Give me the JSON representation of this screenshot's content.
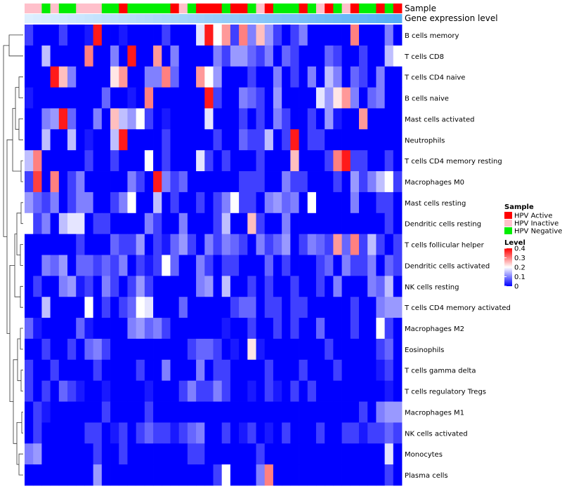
{
  "chart_data": {
    "type": "heatmap",
    "title": "",
    "annotation_rows": [
      "Sample",
      "Gene expression level"
    ],
    "samples": {
      "sample_group": [
        "HPV Inactive",
        "HPV Inactive",
        "HPV Negative",
        "HPV Inactive",
        "HPV Negative",
        "HPV Negative",
        "HPV Inactive",
        "HPV Inactive",
        "HPV Inactive",
        "HPV Negative",
        "HPV Negative",
        "HPV Active",
        "HPV Negative",
        "HPV Negative",
        "HPV Negative",
        "HPV Negative",
        "HPV Negative",
        "HPV Active",
        "HPV Inactive",
        "HPV Negative",
        "HPV Active",
        "HPV Active",
        "HPV Active",
        "HPV Negative",
        "HPV Active",
        "HPV Active",
        "HPV Negative",
        "HPV Inactive",
        "HPV Active",
        "HPV Negative",
        "HPV Negative",
        "HPV Negative",
        "HPV Active",
        "HPV Negative",
        "HPV Inactive",
        "HPV Active",
        "HPV Negative",
        "HPV Inactive",
        "HPV Active",
        "HPV Negative",
        "HPV Negative",
        "HPV Active",
        "HPV Negative",
        "HPV Active"
      ],
      "expression_level": [
        0.02,
        0.04,
        0.06,
        0.08,
        0.1,
        0.12,
        0.14,
        0.16,
        0.18,
        0.2,
        0.22,
        0.24,
        0.26,
        0.28,
        0.3,
        0.32,
        0.34,
        0.36,
        0.38,
        0.4,
        0.42,
        0.44,
        0.46,
        0.48,
        0.5,
        0.52,
        0.54,
        0.56,
        0.58,
        0.6,
        0.62,
        0.64,
        0.66,
        0.68,
        0.7,
        0.72,
        0.74,
        0.76,
        0.78,
        0.8,
        0.82,
        0.84,
        0.86,
        0.88
      ]
    },
    "rows": [
      "B cells memory",
      "T cells CD8",
      "T cells CD4 naive",
      "B cells naive",
      "Mast cells activated",
      "Neutrophils",
      "T cells CD4 memory resting",
      "Macrophages M0",
      "Mast cells resting",
      "Dendritic cells resting",
      "T cells follicular helper",
      "Dendritic cells activated",
      "NK cells resting",
      "T cells CD4 memory activated",
      "Macrophages M2",
      "Eosinophils",
      "T cells gamma delta",
      "T cells regulatory  Tregs",
      "Macrophages M1",
      "NK cells activated",
      "Monocytes",
      "Plasma cells"
    ],
    "values": [
      [
        0.05,
        0,
        0,
        0,
        0.05,
        0,
        0,
        0.02,
        0.38,
        0,
        0,
        0.02,
        0,
        0,
        0,
        0,
        0.05,
        0,
        0,
        0,
        0.18,
        0.38,
        0.2,
        0.28,
        0.05,
        0.3,
        0.1,
        0.25,
        0.12,
        0.05,
        0,
        0.05,
        0.1,
        0,
        0,
        0,
        0,
        0,
        0.3,
        0,
        0,
        0,
        0.1,
        0
      ],
      [
        0,
        0,
        0.15,
        0,
        0,
        0,
        0,
        0.3,
        0,
        0,
        0.1,
        0,
        0.38,
        0,
        0,
        0.28,
        0,
        0.1,
        0,
        0,
        0,
        0,
        0.1,
        0.05,
        0.12,
        0.12,
        0.08,
        0.05,
        0.1,
        0,
        0.08,
        0.05,
        0,
        0,
        0,
        0.08,
        0.05,
        0,
        0,
        0.05,
        0,
        0,
        0.15,
        0.2
      ],
      [
        0,
        0,
        0,
        0.38,
        0.25,
        0.1,
        0,
        0,
        0,
        0,
        0.22,
        0.28,
        0,
        0,
        0.1,
        0.1,
        0.3,
        0.08,
        0,
        0,
        0.28,
        0.2,
        0.12,
        0,
        0,
        0,
        0.05,
        0,
        0,
        0.1,
        0,
        0.05,
        0,
        0.1,
        0,
        0.15,
        0.1,
        0,
        0.08,
        0.05,
        0,
        0.1,
        0,
        0
      ],
      [
        0.02,
        0,
        0,
        0,
        0,
        0,
        0,
        0,
        0,
        0.08,
        0,
        0,
        0.02,
        0,
        0.3,
        0,
        0,
        0,
        0,
        0,
        0,
        0.38,
        0.05,
        0,
        0,
        0.1,
        0.08,
        0.05,
        0,
        0.12,
        0,
        0,
        0,
        0,
        0.18,
        0.12,
        0.22,
        0.28,
        0.1,
        0,
        0.08,
        0.1,
        0,
        0
      ],
      [
        0,
        0,
        0.1,
        0.12,
        0.38,
        0.08,
        0,
        0,
        0.1,
        0,
        0.25,
        0.15,
        0.12,
        0.2,
        0.05,
        0,
        0.02,
        0,
        0,
        0,
        0,
        0.18,
        0,
        0,
        0,
        0.05,
        0,
        0.05,
        0,
        0.1,
        0.05,
        0,
        0,
        0.05,
        0,
        0.12,
        0.02,
        0,
        0,
        0.28,
        0,
        0,
        0,
        0
      ],
      [
        0,
        0,
        0.15,
        0,
        0,
        0.15,
        0,
        0.02,
        0,
        0,
        0.15,
        0.38,
        0,
        0,
        0,
        0,
        0.05,
        0,
        0,
        0,
        0,
        0,
        0.05,
        0,
        0,
        0.08,
        0.05,
        0.05,
        0.15,
        0,
        0.05,
        0.38,
        0,
        0.05,
        0.05,
        0,
        0,
        0,
        0,
        0,
        0,
        0,
        0,
        0
      ],
      [
        0.15,
        0.3,
        0,
        0,
        0,
        0,
        0,
        0.05,
        0,
        0,
        0.05,
        0,
        0,
        0,
        0.2,
        0,
        0.05,
        0,
        0,
        0,
        0.18,
        0.05,
        0,
        0.05,
        0,
        0,
        0,
        0.05,
        0,
        0,
        0,
        0.25,
        0,
        0,
        0,
        0.05,
        0.3,
        0.38,
        0.05,
        0.05,
        0,
        0,
        0.05,
        0
      ],
      [
        0.05,
        0.35,
        0,
        0.3,
        0,
        0.05,
        0.1,
        0,
        0,
        0,
        0,
        0,
        0.1,
        0.05,
        0,
        0.38,
        0.1,
        0.05,
        0.08,
        0,
        0,
        0,
        0,
        0,
        0,
        0.05,
        0.05,
        0.05,
        0,
        0,
        0.1,
        0.05,
        0.05,
        0,
        0,
        0,
        0.05,
        0,
        0.12,
        0.05,
        0.1,
        0.15,
        0.2,
        0.05
      ],
      [
        0.12,
        0.08,
        0.05,
        0.1,
        0,
        0.05,
        0.1,
        0.1,
        0,
        0,
        0.05,
        0.1,
        0.2,
        0,
        0,
        0.15,
        0,
        0.05,
        0,
        0,
        0.05,
        0,
        0.05,
        0.1,
        0.2,
        0.05,
        0.05,
        0,
        0.1,
        0.12,
        0.08,
        0.1,
        0,
        0.2,
        0,
        0,
        0,
        0,
        0.1,
        0,
        0,
        0.05,
        0.05,
        0
      ],
      [
        0.2,
        0.05,
        0.1,
        0,
        0.15,
        0.18,
        0.18,
        0,
        0.05,
        0.05,
        0,
        0,
        0,
        0,
        0.1,
        0.05,
        0,
        0,
        0.1,
        0,
        0,
        0,
        0.05,
        0.15,
        0,
        0,
        0.25,
        0.05,
        0,
        0,
        0.1,
        0,
        0,
        0,
        0,
        0,
        0,
        0,
        0,
        0,
        0,
        0,
        0.05,
        0
      ],
      [
        0,
        0,
        0,
        0,
        0,
        0,
        0.05,
        0,
        0,
        0,
        0.08,
        0.05,
        0.05,
        0.12,
        0,
        0.05,
        0.02,
        0.08,
        0.12,
        0.05,
        0,
        0.1,
        0.05,
        0.1,
        0.08,
        0.05,
        0,
        0.1,
        0.05,
        0.08,
        0.12,
        0,
        0.05,
        0.1,
        0.08,
        0.05,
        0.28,
        0.08,
        0.3,
        0.05,
        0.15,
        0.05,
        0,
        0.05
      ],
      [
        0,
        0,
        0.1,
        0.08,
        0.12,
        0,
        0.08,
        0.08,
        0.05,
        0.08,
        0.05,
        0.1,
        0,
        0.05,
        0.02,
        0.05,
        0.2,
        0.08,
        0,
        0,
        0.1,
        0.05,
        0,
        0.05,
        0.05,
        0,
        0,
        0,
        0.08,
        0,
        0.05,
        0,
        0,
        0,
        0.05,
        0.08,
        0,
        0.1,
        0.05,
        0.05,
        0.1,
        0,
        0.08,
        0.05
      ],
      [
        0,
        0.05,
        0,
        0,
        0.1,
        0.12,
        0.02,
        0.05,
        0,
        0.1,
        0.05,
        0,
        0.05,
        0.12,
        0.05,
        0,
        0,
        0,
        0,
        0,
        0.1,
        0.12,
        0,
        0.15,
        0,
        0,
        0.05,
        0,
        0.05,
        0,
        0,
        0.05,
        0,
        0,
        0.05,
        0,
        0.1,
        0,
        0,
        0,
        0.1,
        0.08,
        0.15,
        0
      ],
      [
        0,
        0,
        0.15,
        0,
        0,
        0,
        0,
        0.2,
        0,
        0.05,
        0,
        0.05,
        0.08,
        0.2,
        0.18,
        0,
        0,
        0,
        0.08,
        0,
        0,
        0,
        0,
        0,
        0.05,
        0.08,
        0.08,
        0,
        0.05,
        0.05,
        0,
        0.05,
        0.05,
        0,
        0,
        0,
        0,
        0,
        0.05,
        0,
        0,
        0.1,
        0.12,
        0.12
      ],
      [
        0.08,
        0.02,
        0,
        0,
        0,
        0,
        0.08,
        0.02,
        0,
        0,
        0,
        0,
        0.1,
        0.12,
        0.08,
        0.1,
        0.05,
        0,
        0,
        0,
        0,
        0,
        0,
        0.02,
        0,
        0,
        0.05,
        0,
        0,
        0.05,
        0,
        0.05,
        0,
        0,
        0.08,
        0,
        0,
        0,
        0.05,
        0,
        0,
        0.2,
        0.05,
        0
      ],
      [
        0,
        0,
        0.05,
        0,
        0,
        0.05,
        0,
        0.08,
        0.1,
        0.05,
        0,
        0,
        0,
        0,
        0,
        0,
        0,
        0,
        0,
        0.05,
        0.08,
        0.08,
        0.05,
        0,
        0.02,
        0,
        0.22,
        0.02,
        0,
        0,
        0,
        0,
        0,
        0,
        0,
        0.05,
        0,
        0,
        0,
        0,
        0,
        0.05,
        0.08,
        0
      ],
      [
        0.05,
        0,
        0,
        0.05,
        0,
        0,
        0,
        0,
        0.05,
        0,
        0,
        0,
        0,
        0.05,
        0,
        0,
        0.1,
        0,
        0,
        0,
        0.1,
        0,
        0.05,
        0.05,
        0,
        0,
        0,
        0,
        0.05,
        0,
        0,
        0,
        0.05,
        0,
        0,
        0,
        0.05,
        0,
        0,
        0,
        0,
        0.02,
        0.05,
        0
      ],
      [
        0.05,
        0,
        0.05,
        0,
        0.08,
        0.05,
        0.02,
        0,
        0,
        0.02,
        0,
        0,
        0,
        0,
        0.02,
        0,
        0,
        0,
        0.05,
        0.1,
        0.05,
        0.05,
        0.1,
        0.05,
        0,
        0,
        0.02,
        0,
        0.05,
        0.02,
        0,
        0.05,
        0,
        0.05,
        0,
        0,
        0,
        0,
        0,
        0,
        0,
        0,
        0.02,
        0
      ],
      [
        0,
        0.05,
        0.02,
        0,
        0,
        0,
        0,
        0,
        0,
        0.05,
        0,
        0,
        0,
        0,
        0.05,
        0,
        0,
        0,
        0,
        0,
        0,
        0,
        0,
        0,
        0,
        0,
        0,
        0,
        0,
        0,
        0,
        0,
        0,
        0,
        0,
        0,
        0,
        0,
        0,
        0.05,
        0,
        0.1,
        0.12,
        0.12
      ],
      [
        0,
        0.05,
        0,
        0,
        0,
        0,
        0,
        0.05,
        0.05,
        0,
        0.02,
        0.05,
        0,
        0.05,
        0.08,
        0.05,
        0.05,
        0.02,
        0.05,
        0.08,
        0.1,
        0,
        0,
        0.05,
        0,
        0.02,
        0.05,
        0,
        0.02,
        0,
        0.05,
        0,
        0,
        0,
        0.05,
        0,
        0,
        0.05,
        0.05,
        0.02,
        0.05,
        0.05,
        0.08,
        0.05
      ],
      [
        0.1,
        0.12,
        0,
        0,
        0,
        0,
        0,
        0,
        0.05,
        0,
        0,
        0.05,
        0,
        0,
        0,
        0,
        0,
        0,
        0,
        0.05,
        0.05,
        0,
        0,
        0,
        0,
        0,
        0,
        0.05,
        0,
        0,
        0,
        0,
        0,
        0,
        0,
        0,
        0,
        0,
        0,
        0,
        0,
        0,
        0.18,
        0
      ],
      [
        0,
        0,
        0,
        0,
        0,
        0,
        0,
        0,
        0.12,
        0,
        0,
        0,
        0,
        0,
        0,
        0,
        0,
        0,
        0,
        0,
        0,
        0,
        0.05,
        0.2,
        0,
        0,
        0,
        0.1,
        0.3,
        0,
        0,
        0,
        0,
        0,
        0,
        0,
        0,
        0,
        0,
        0,
        0,
        0,
        0.05,
        0
      ]
    ],
    "legend": {
      "sample_title": "Sample",
      "sample_groups": [
        "HPV Active",
        "HPV Inactive",
        "HPV Negative"
      ],
      "sample_colors": [
        "#ff0000",
        "#ffc0cb",
        "#00ee00"
      ],
      "level_title": "Level",
      "level_ticks": [
        "0.4",
        "0.3",
        "0.2",
        "0.1",
        "0"
      ],
      "level_range": [
        0,
        0.4
      ],
      "level_colors": [
        "#0000ff",
        "#ffffff",
        "#ff0000"
      ],
      "placement": "right"
    }
  }
}
